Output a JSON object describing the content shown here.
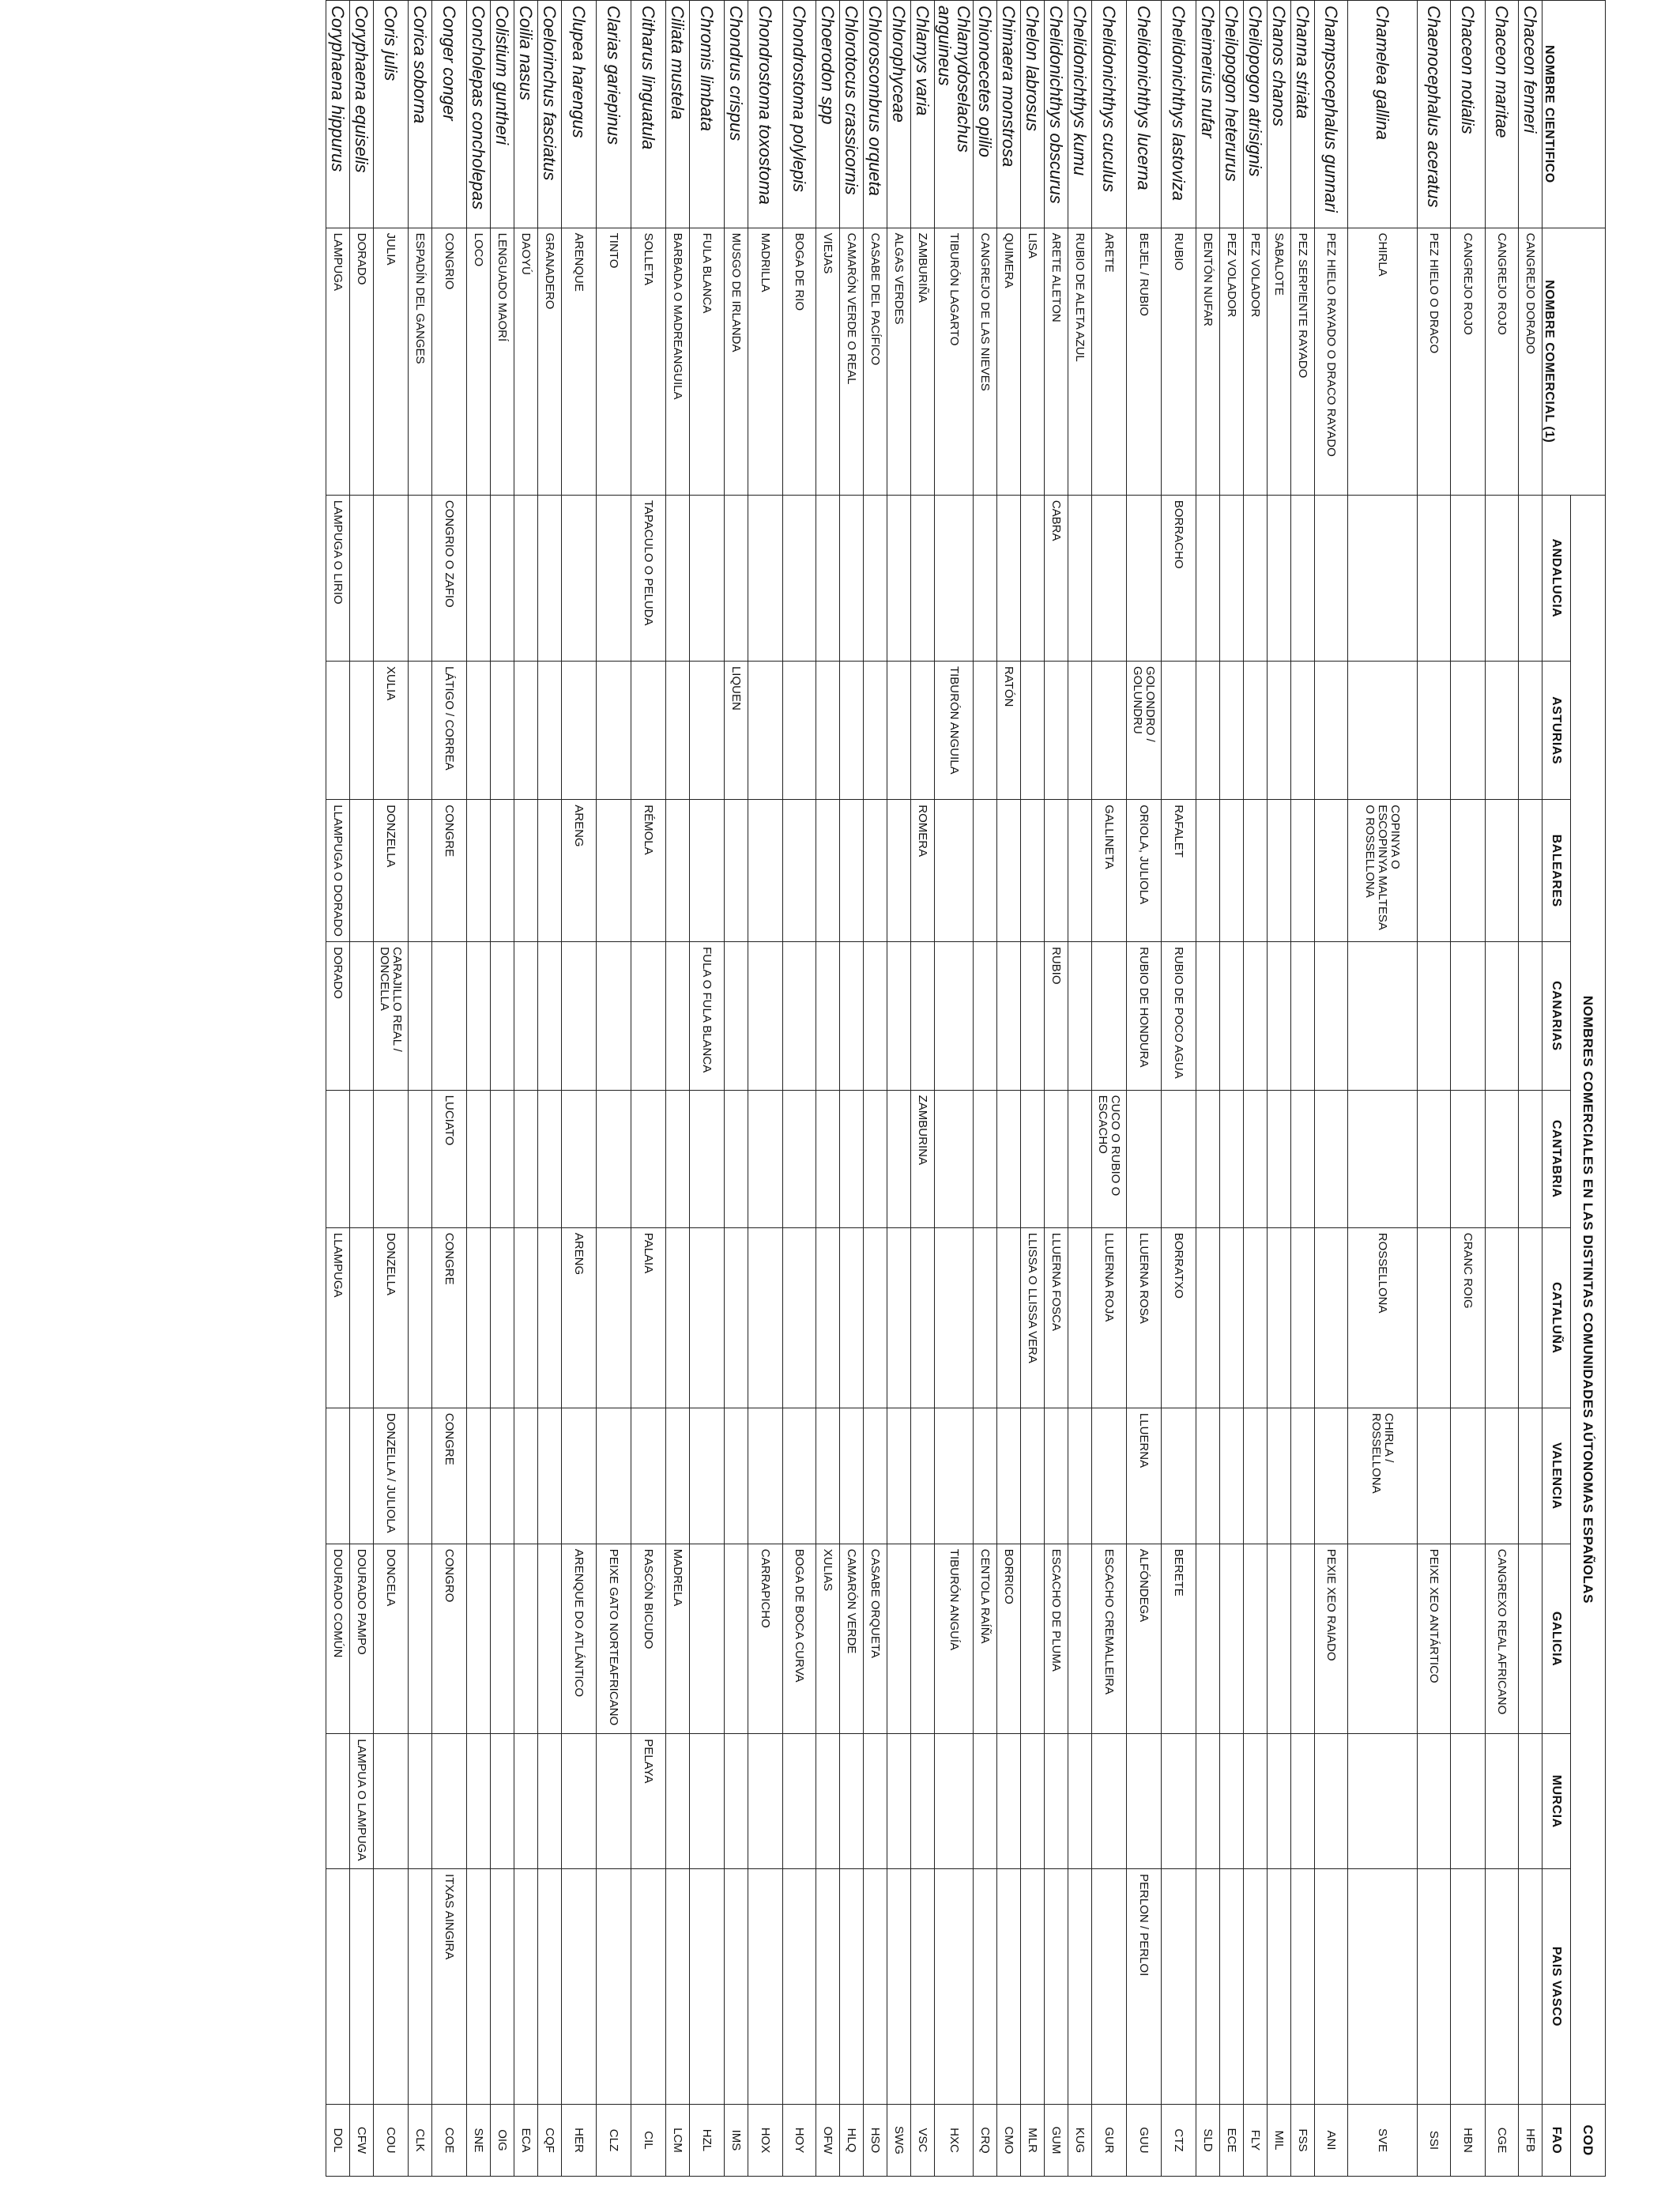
{
  "headers": {
    "cientifico": "NOMBRE CIENTIFICO",
    "comercial": "NOMBRE COMERCIAL (1)",
    "group": "NOMBRES COMERCIALES EN LAS DISTINTAS COMUNIDADES AÚTONOMAS ESPAÑOLAS",
    "cod": "COD",
    "regions": [
      "ANDALUCIA",
      "ASTURIAS",
      "BALEARES",
      "CANARIAS",
      "CANTABRIA",
      "CATALUÑA",
      "VALENCIA",
      "GALICIA",
      "MURCIA",
      "PAIS VASCO"
    ],
    "fao": "FAO"
  },
  "rows": [
    {
      "sci": "Chaceon fenneri",
      "com": "CANGREJO DORADO",
      "r": [
        "",
        "",
        "",
        "",
        "",
        "",
        "",
        "",
        "",
        ""
      ],
      "fao": "HFB"
    },
    {
      "sci": "Chaceon maritae",
      "com": "CANGREJO ROJO",
      "r": [
        "",
        "",
        "",
        "",
        "",
        "",
        "",
        "CANGREXO REAL AFRICANO",
        "",
        ""
      ],
      "fao": "CGE"
    },
    {
      "sci": "Chaceon notialis",
      "com": "CANGREJO ROJO",
      "r": [
        "",
        "",
        "",
        "",
        "",
        "CRANC ROIG",
        "",
        "",
        "",
        ""
      ],
      "fao": "HBN"
    },
    {
      "sci": "Chaenocephalus aceratus",
      "com": "PEZ HIELO O DRACO",
      "r": [
        "",
        "",
        "",
        "",
        "",
        "",
        "",
        "PEIXE XEO ANTÁRTICO",
        "",
        ""
      ],
      "fao": "SSI"
    },
    {
      "sci": "Chamelea gallina",
      "com": "CHIRLA",
      "r": [
        "",
        "",
        "COPINYA O ESCOPINYA MALTESA O ROSSELLONA",
        "",
        "",
        "ROSSELLONA",
        "CHIRLA / ROSSELLONA",
        "",
        "",
        ""
      ],
      "fao": "SVE"
    },
    {
      "sci": "Champsocephalus gunnari",
      "com": "PEZ HIELO RAYADO O DRACO RAYADO",
      "r": [
        "",
        "",
        "",
        "",
        "",
        "",
        "",
        "PEXIE XEO RAIADO",
        "",
        ""
      ],
      "fao": "ANI"
    },
    {
      "sci": "Channa striata",
      "com": "PEZ SERPIENTE RAYADO",
      "r": [
        "",
        "",
        "",
        "",
        "",
        "",
        "",
        "",
        "",
        ""
      ],
      "fao": "FSS"
    },
    {
      "sci": "Chanos chanos",
      "com": "SABALOTE",
      "r": [
        "",
        "",
        "",
        "",
        "",
        "",
        "",
        "",
        "",
        ""
      ],
      "fao": "MIL"
    },
    {
      "sci": "Cheilopogon atrisignis",
      "com": "PEZ VOLADOR",
      "r": [
        "",
        "",
        "",
        "",
        "",
        "",
        "",
        "",
        "",
        ""
      ],
      "fao": "FLY"
    },
    {
      "sci": "Cheilopogon heterurus",
      "com": "PEZ VOLADOR",
      "r": [
        "",
        "",
        "",
        "",
        "",
        "",
        "",
        "",
        "",
        ""
      ],
      "fao": "ECE"
    },
    {
      "sci": "Cheimerius nufar",
      "com": "DENTÓN NUFAR",
      "r": [
        "",
        "",
        "",
        "",
        "",
        "",
        "",
        "",
        "",
        ""
      ],
      "fao": "SLD"
    },
    {
      "sci": "Chelidonichthys  lastoviza",
      "com": "RUBIO",
      "r": [
        "BORRACHO",
        "",
        "RAFALET",
        "RUBIO DE POCO AGUA",
        "",
        "BORRATXO",
        "",
        "BERETE",
        "",
        ""
      ],
      "fao": "CTZ"
    },
    {
      "sci": "Chelidonichthys  lucerna",
      "com": "BEJEL / RUBIO",
      "r": [
        "",
        "GOLONDRO / GOLUNDRU",
        "ORIOLA, JULIOLA",
        "RUBIO DE HONDURA",
        "",
        "LLUERNA  ROSA",
        "LLUERNA",
        "ALFÓNDEGA",
        "",
        "PERLON / PERLOI"
      ],
      "fao": "GUU"
    },
    {
      "sci": "Chelidonichthys cuculus",
      "com": "ARETE",
      "r": [
        "",
        "",
        "GALLINETA",
        "",
        "CUCO O RUBIO O ESCACHO",
        "LLUERNA  ROJA",
        "",
        "ESCACHO CREMALLEIRA",
        "",
        ""
      ],
      "fao": "GUR"
    },
    {
      "sci": "Chelidonichthys kumu",
      "com": "RUBIO DE ALETA AZUL",
      "r": [
        "",
        "",
        "",
        "",
        "",
        "",
        "",
        "",
        "",
        ""
      ],
      "fao": "KUG"
    },
    {
      "sci": "Chelidonichthys obscurus",
      "com": "ARETE ALETON",
      "r": [
        "CABRA",
        "",
        "",
        "RUBIO",
        "",
        "LLUERNA FOSCA",
        "",
        "ESCACHO DE PLUMA",
        "",
        ""
      ],
      "fao": "GUM"
    },
    {
      "sci": "Chelon labrosus",
      "com": "LISA",
      "r": [
        "",
        "",
        "",
        "",
        "",
        "LLISSA O LLISSA VERA",
        "",
        "",
        "",
        ""
      ],
      "fao": "MLR"
    },
    {
      "sci": "Chimaera monstrosa",
      "com": "QUIMERA",
      "r": [
        "",
        "RATÓN",
        "",
        "",
        "",
        "",
        "",
        "BORRICO",
        "",
        ""
      ],
      "fao": "CMO"
    },
    {
      "sci": "Chionoecetes opilio",
      "com": "CANGREJO DE LAS NIEVES",
      "r": [
        "",
        "",
        "",
        "",
        "",
        "",
        "",
        "CENTOLA RAÍÑA",
        "",
        ""
      ],
      "fao": "CRQ"
    },
    {
      "sci": "Chlamydoselachus anguineus",
      "com": "TIBURÓN LAGARTO",
      "r": [
        "",
        "TIBURÓN ANGUILA",
        "",
        "",
        "",
        "",
        "",
        "TIBURÓN ANGUÍA",
        "",
        ""
      ],
      "fao": "HXC"
    },
    {
      "sci": "Chlamys varia",
      "com": "ZAMBURIÑA",
      "r": [
        "",
        "",
        "ROMERA",
        "",
        "ZAMBURINA",
        "",
        "",
        "",
        "",
        ""
      ],
      "fao": "VSC"
    },
    {
      "sci": "Chlorophyceae",
      "com": "ALGAS VERDES",
      "r": [
        "",
        "",
        "",
        "",
        "",
        "",
        "",
        "",
        "",
        ""
      ],
      "fao": "SWG"
    },
    {
      "sci": "Chloroscombrus orqueta",
      "com": "CASABE DEL PACÍFICO",
      "r": [
        "",
        "",
        "",
        "",
        "",
        "",
        "",
        "CASABE ORQUETA",
        "",
        ""
      ],
      "fao": "HSO"
    },
    {
      "sci": "Chlorotocus crassicornis",
      "com": "CAMARÓN VERDE O REAL",
      "r": [
        "",
        "",
        "",
        "",
        "",
        "",
        "",
        "CAMARÓN VERDE",
        "",
        ""
      ],
      "fao": "HLQ"
    },
    {
      "sci": "Choerodon  spp",
      "com": "VIEJAS",
      "r": [
        "",
        "",
        "",
        "",
        "",
        "",
        "",
        "XULIAS",
        "",
        ""
      ],
      "fao": "OFW"
    },
    {
      "sci": "Chondrostoma polylepis",
      "com": "BOGA DE RIO",
      "r": [
        "",
        "",
        "",
        "",
        "",
        "",
        "",
        "BOGA DE BOCA CURVA",
        "",
        ""
      ],
      "fao": "HOY"
    },
    {
      "sci": "Chondrostoma toxostoma",
      "com": "MADRILLA",
      "r": [
        "",
        "",
        "",
        "",
        "",
        "",
        "",
        "CARRAPICHO",
        "",
        ""
      ],
      "fao": "HOX"
    },
    {
      "sci": "Chondrus crispus",
      "com": "MUSGO DE IRLANDA",
      "r": [
        "",
        "LIQUEN",
        "",
        "",
        "",
        "",
        "",
        "",
        "",
        ""
      ],
      "fao": "IMS"
    },
    {
      "sci": "Chromis limbata",
      "com": "FULA BLANCA",
      "r": [
        "",
        "",
        "",
        "FULA O FULA BLANCA",
        "",
        "",
        "",
        "",
        "",
        ""
      ],
      "fao": "HZL"
    },
    {
      "sci": "Ciliata mustela",
      "com": "BARBADA O MADREANGUILA",
      "r": [
        "",
        "",
        "",
        "",
        "",
        "",
        "",
        "MADRELA",
        "",
        ""
      ],
      "fao": "LCM"
    },
    {
      "sci": "Citharus linguatula",
      "com": "SOLLETA",
      "r": [
        "TAPACULO O PELUDA",
        "",
        "RÉMOLA",
        "",
        "",
        "PALAIA",
        "",
        "RASCÓN BICUDO",
        "PELAYA",
        ""
      ],
      "fao": "CIL"
    },
    {
      "sci": "Clarias gariepinus",
      "com": "TINTO",
      "r": [
        "",
        "",
        "",
        "",
        "",
        "",
        "",
        "PEIXE GATO NORTEAFRICANO",
        "",
        ""
      ],
      "fao": "CLZ"
    },
    {
      "sci": "Clupea harengus",
      "com": "ARENQUE",
      "r": [
        "",
        "",
        "ARENG",
        "",
        "",
        "ARENG",
        "",
        "ARENQUE DO ATLÁNTICO",
        "",
        ""
      ],
      "fao": "HER"
    },
    {
      "sci": "Coelorinchus fasciatus",
      "com": "GRANADERO",
      "r": [
        "",
        "",
        "",
        "",
        "",
        "",
        "",
        "",
        "",
        ""
      ],
      "fao": "CQF"
    },
    {
      "sci": "Coilia nasus",
      "com": "DAOYÚ",
      "r": [
        "",
        "",
        "",
        "",
        "",
        "",
        "",
        "",
        "",
        ""
      ],
      "fao": "ECA"
    },
    {
      "sci": "Colistium guntheri",
      "com": "LENGUADO MAORÍ",
      "r": [
        "",
        "",
        "",
        "",
        "",
        "",
        "",
        "",
        "",
        ""
      ],
      "fao": "OIG"
    },
    {
      "sci": "Concholepas concholepas",
      "com": "LOCO",
      "r": [
        "",
        "",
        "",
        "",
        "",
        "",
        "",
        "",
        "",
        ""
      ],
      "fao": "SNE"
    },
    {
      "sci": "Conger conger",
      "com": "CONGRIO",
      "r": [
        "CONGRIO O ZAFIO",
        "LÁTIGO / CORREA",
        "CONGRE",
        "",
        "LUCIATO",
        "CONGRE",
        "CONGRE",
        "CONGRO",
        "",
        "ITXAS AINGIRA"
      ],
      "fao": "COE"
    },
    {
      "sci": "Corica soborna",
      "com": "ESPADÍN DEL GANGES",
      "r": [
        "",
        "",
        "",
        "",
        "",
        "",
        "",
        "",
        "",
        ""
      ],
      "fao": "CLK"
    },
    {
      "sci": "Coris julis",
      "com": "JULIA",
      "r": [
        "",
        "XULIA",
        "DONZELLA",
        "CARAJILLO REAL / DONCELLA",
        "",
        "DONZELLA",
        "DONZELLA / JULIOLA",
        "DONCELA",
        "",
        ""
      ],
      "fao": "COU"
    },
    {
      "sci": "Coryphaena equiselis",
      "com": "DORADO",
      "r": [
        "",
        "",
        "",
        "",
        "",
        "",
        "",
        "DOURADO PAMPO",
        "LAMPUA O LAMPUGA",
        ""
      ],
      "fao": "CFW"
    },
    {
      "sci": "Coryphaena hippurus",
      "com": "LAMPUGA",
      "r": [
        "LAMPUGA O LIRIO",
        "",
        "LLAMPUGA O DORADO",
        "DORADO",
        "",
        "LLAMPUGA",
        "",
        "DOURADO COMÚN",
        "",
        ""
      ],
      "fao": "DOL"
    }
  ]
}
